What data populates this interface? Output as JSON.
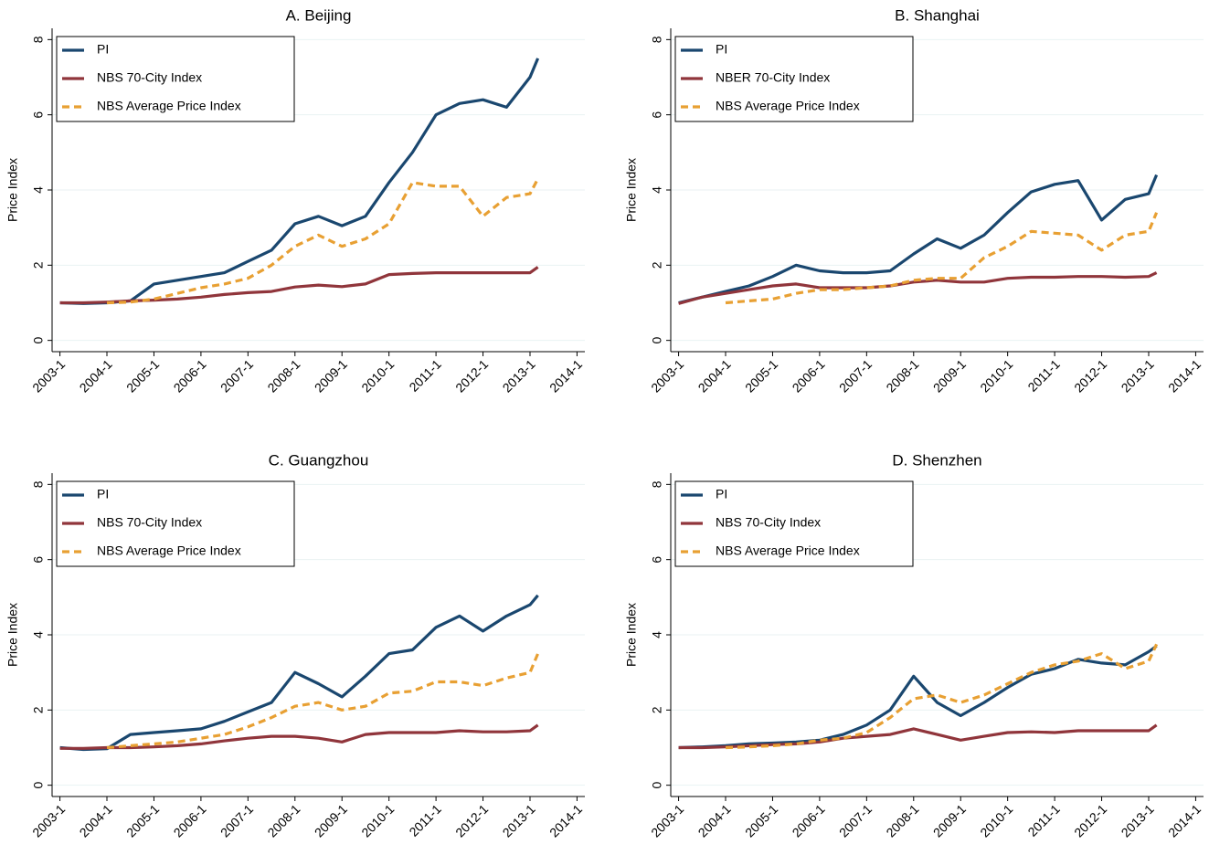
{
  "chart_data": [
    {
      "type": "line",
      "title": "A. Beijing",
      "ylabel": "Price Index",
      "x": [
        "2003-1",
        "2003-7",
        "2004-1",
        "2004-7",
        "2005-1",
        "2005-7",
        "2006-1",
        "2006-7",
        "2007-1",
        "2007-7",
        "2008-1",
        "2008-7",
        "2009-1",
        "2009-7",
        "2010-1",
        "2010-7",
        "2011-1",
        "2011-7",
        "2012-1",
        "2012-7",
        "2013-1",
        "2013-3"
      ],
      "xlim": [
        "2002-11",
        "2014-3"
      ],
      "xticks": [
        "2003-1",
        "2004-1",
        "2005-1",
        "2006-1",
        "2007-1",
        "2008-1",
        "2009-1",
        "2010-1",
        "2011-1",
        "2012-1",
        "2013-1",
        "2014-1"
      ],
      "ylim": [
        -0.3,
        8.3
      ],
      "yticks": [
        0,
        2,
        4,
        6,
        8
      ],
      "grid": true,
      "legend": "top-left",
      "series": [
        {
          "name": "PI",
          "color": "#1a476f",
          "dash": false,
          "values": [
            1,
            0.98,
            1.0,
            1.05,
            1.5,
            1.6,
            1.7,
            1.8,
            2.1,
            2.4,
            3.1,
            3.3,
            3.05,
            3.3,
            4.2,
            5.0,
            6.0,
            6.3,
            6.4,
            6.2,
            7.0,
            7.5
          ]
        },
        {
          "name": "NBS 70-City Index",
          "color": "#90353b",
          "dash": false,
          "values": [
            1,
            1,
            1.02,
            1.05,
            1.07,
            1.1,
            1.15,
            1.22,
            1.27,
            1.3,
            1.42,
            1.47,
            1.43,
            1.5,
            1.75,
            1.78,
            1.8,
            1.8,
            1.8,
            1.8,
            1.8,
            1.95
          ]
        },
        {
          "name": "NBS Average Price Index",
          "color": "#e8a033",
          "dash": true,
          "values": [
            null,
            null,
            1.0,
            1.02,
            1.1,
            1.25,
            1.4,
            1.5,
            1.65,
            2.0,
            2.5,
            2.8,
            2.5,
            2.7,
            3.1,
            4.2,
            4.1,
            4.1,
            3.3,
            3.8,
            3.9,
            4.3
          ]
        }
      ]
    },
    {
      "type": "line",
      "title": "B. Shanghai",
      "ylabel": "Price Index",
      "x": [
        "2003-1",
        "2003-7",
        "2004-1",
        "2004-7",
        "2005-1",
        "2005-7",
        "2006-1",
        "2006-7",
        "2007-1",
        "2007-7",
        "2008-1",
        "2008-7",
        "2009-1",
        "2009-7",
        "2010-1",
        "2010-7",
        "2011-1",
        "2011-7",
        "2012-1",
        "2012-7",
        "2013-1",
        "2013-3"
      ],
      "xlim": [
        "2002-11",
        "2014-3"
      ],
      "xticks": [
        "2003-1",
        "2004-1",
        "2005-1",
        "2006-1",
        "2007-1",
        "2008-1",
        "2009-1",
        "2010-1",
        "2011-1",
        "2012-1",
        "2013-1",
        "2014-1"
      ],
      "ylim": [
        -0.3,
        8.3
      ],
      "yticks": [
        0,
        2,
        4,
        6,
        8
      ],
      "grid": true,
      "legend": "top-left",
      "series": [
        {
          "name": "PI",
          "color": "#1a476f",
          "dash": false,
          "values": [
            1,
            1.15,
            1.3,
            1.45,
            1.7,
            2.0,
            1.85,
            1.8,
            1.8,
            1.85,
            2.3,
            2.7,
            2.45,
            2.8,
            3.4,
            3.95,
            4.15,
            4.25,
            3.2,
            3.75,
            3.9,
            4.4
          ]
        },
        {
          "name": "NBER 70-City Index",
          "color": "#90353b",
          "dash": false,
          "values": [
            0.98,
            1.15,
            1.25,
            1.35,
            1.45,
            1.5,
            1.4,
            1.4,
            1.4,
            1.45,
            1.55,
            1.6,
            1.55,
            1.55,
            1.65,
            1.68,
            1.68,
            1.7,
            1.7,
            1.68,
            1.7,
            1.8
          ]
        },
        {
          "name": "NBS Average Price Index",
          "color": "#e8a033",
          "dash": true,
          "values": [
            null,
            null,
            1.0,
            1.05,
            1.1,
            1.25,
            1.35,
            1.35,
            1.4,
            1.45,
            1.6,
            1.65,
            1.65,
            2.2,
            2.5,
            2.9,
            2.85,
            2.8,
            2.4,
            2.8,
            2.9,
            3.4
          ]
        }
      ]
    },
    {
      "type": "line",
      "title": "C. Guangzhou",
      "ylabel": "Price Index",
      "x": [
        "2003-1",
        "2003-7",
        "2004-1",
        "2004-7",
        "2005-1",
        "2005-7",
        "2006-1",
        "2006-7",
        "2007-1",
        "2007-7",
        "2008-1",
        "2008-7",
        "2009-1",
        "2009-7",
        "2010-1",
        "2010-7",
        "2011-1",
        "2011-7",
        "2012-1",
        "2012-7",
        "2013-1",
        "2013-3"
      ],
      "xlim": [
        "2002-11",
        "2014-3"
      ],
      "xticks": [
        "2003-1",
        "2004-1",
        "2005-1",
        "2006-1",
        "2007-1",
        "2008-1",
        "2009-1",
        "2010-1",
        "2011-1",
        "2012-1",
        "2013-1",
        "2014-1"
      ],
      "ylim": [
        -0.3,
        8.3
      ],
      "yticks": [
        0,
        2,
        4,
        6,
        8
      ],
      "grid": true,
      "legend": "top-left",
      "series": [
        {
          "name": "PI",
          "color": "#1a476f",
          "dash": false,
          "values": [
            1,
            0.95,
            0.97,
            1.35,
            1.4,
            1.45,
            1.5,
            1.7,
            1.95,
            2.2,
            3.0,
            2.7,
            2.35,
            2.9,
            3.5,
            3.6,
            4.2,
            4.5,
            4.1,
            4.5,
            4.8,
            5.05
          ]
        },
        {
          "name": "NBS 70-City Index",
          "color": "#90353b",
          "dash": false,
          "values": [
            0.98,
            0.98,
            1.0,
            1.0,
            1.02,
            1.05,
            1.1,
            1.18,
            1.25,
            1.3,
            1.3,
            1.25,
            1.15,
            1.35,
            1.4,
            1.4,
            1.4,
            1.45,
            1.42,
            1.42,
            1.45,
            1.6
          ]
        },
        {
          "name": "NBS Average Price Index",
          "color": "#e8a033",
          "dash": true,
          "values": [
            null,
            null,
            1.0,
            1.05,
            1.1,
            1.15,
            1.25,
            1.35,
            1.55,
            1.8,
            2.1,
            2.2,
            2.0,
            2.1,
            2.45,
            2.5,
            2.75,
            2.75,
            2.65,
            2.85,
            3.0,
            3.5
          ]
        }
      ]
    },
    {
      "type": "line",
      "title": "D. Shenzhen",
      "ylabel": "Price Index",
      "x": [
        "2003-1",
        "2003-7",
        "2004-1",
        "2004-7",
        "2005-1",
        "2005-7",
        "2006-1",
        "2006-7",
        "2007-1",
        "2007-7",
        "2008-1",
        "2008-7",
        "2009-1",
        "2009-7",
        "2010-1",
        "2010-7",
        "2011-1",
        "2011-7",
        "2012-1",
        "2012-7",
        "2013-1",
        "2013-3"
      ],
      "xlim": [
        "2002-11",
        "2014-3"
      ],
      "xticks": [
        "2003-1",
        "2004-1",
        "2005-1",
        "2006-1",
        "2007-1",
        "2008-1",
        "2009-1",
        "2010-1",
        "2011-1",
        "2012-1",
        "2013-1",
        "2014-1"
      ],
      "ylim": [
        -0.3,
        8.3
      ],
      "yticks": [
        0,
        2,
        4,
        6,
        8
      ],
      "grid": true,
      "legend": "top-left",
      "series": [
        {
          "name": "PI",
          "color": "#1a476f",
          "dash": false,
          "values": [
            1,
            1.02,
            1.05,
            1.1,
            1.12,
            1.15,
            1.2,
            1.35,
            1.6,
            2.0,
            2.9,
            2.2,
            1.85,
            2.2,
            2.6,
            2.95,
            3.1,
            3.35,
            3.25,
            3.2,
            3.55,
            3.7
          ]
        },
        {
          "name": "NBS 70-City Index",
          "color": "#90353b",
          "dash": false,
          "values": [
            1,
            1,
            1.02,
            1.05,
            1.08,
            1.1,
            1.15,
            1.25,
            1.3,
            1.35,
            1.5,
            1.35,
            1.2,
            1.3,
            1.4,
            1.42,
            1.4,
            1.45,
            1.45,
            1.45,
            1.45,
            1.6
          ]
        },
        {
          "name": "NBS Average Price Index",
          "color": "#e8a033",
          "dash": true,
          "values": [
            null,
            null,
            1.0,
            1.02,
            1.05,
            1.1,
            1.2,
            1.25,
            1.4,
            1.8,
            2.3,
            2.4,
            2.2,
            2.4,
            2.7,
            3.0,
            3.2,
            3.3,
            3.5,
            3.1,
            3.3,
            3.75
          ]
        }
      ]
    }
  ]
}
